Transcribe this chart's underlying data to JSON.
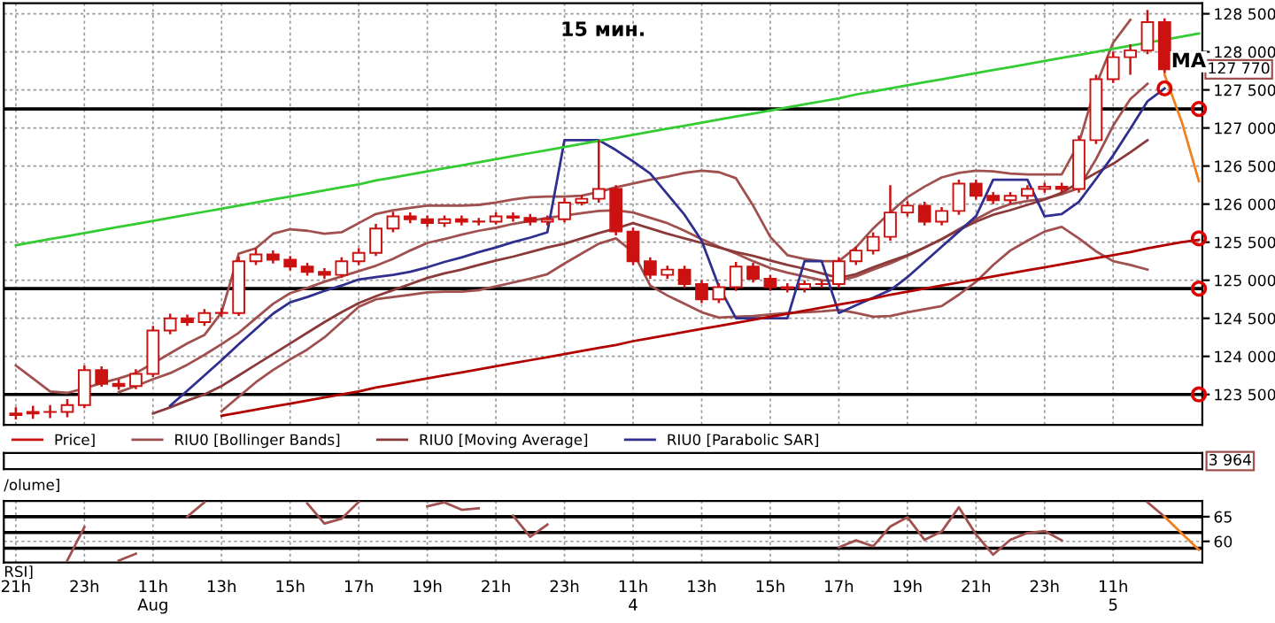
{
  "chart_data": [
    {
      "type": "candlestick",
      "title": "15 мин.",
      "ylim": [
        123100,
        128640
      ],
      "categories": [
        null,
        null,
        null,
        null,
        null,
        null,
        null,
        null,
        null,
        null,
        null,
        null,
        null,
        null,
        null,
        null,
        null,
        null,
        null,
        null,
        null,
        null,
        null,
        null,
        null,
        null,
        null,
        null,
        null,
        null,
        null,
        null,
        null,
        null,
        null,
        null,
        null,
        null,
        null,
        null,
        null,
        null,
        null,
        null,
        null,
        null,
        null,
        null,
        null,
        null,
        null,
        null,
        null,
        null,
        null,
        null,
        null,
        null,
        null,
        null,
        null,
        null,
        null,
        null,
        null,
        null,
        null,
        null,
        null,
        null
      ],
      "yticks": [
        {
          "value": 123500,
          "label": "123 500"
        },
        {
          "value": 124000,
          "label": "124 000"
        },
        {
          "value": 124500,
          "label": "124 500"
        },
        {
          "value": 125000,
          "label": "125 000"
        },
        {
          "value": 125500,
          "label": "125 500"
        },
        {
          "value": 126000,
          "label": "126 000"
        },
        {
          "value": 126500,
          "label": "126 500"
        },
        {
          "value": 127000,
          "label": "127 000"
        },
        {
          "value": 127500,
          "label": "127 500"
        },
        {
          "value": 128000,
          "label": "128 000"
        },
        {
          "value": 128500,
          "label": "128 500"
        }
      ],
      "tick_labels": "y",
      "grid": true,
      "legend": "bottom",
      "ref_lines": [
        {
          "axis": "y",
          "value": 127250,
          "color": "#000000"
        },
        {
          "axis": "y",
          "value": 124890,
          "color": "#000000"
        },
        {
          "axis": "y",
          "value": 123500,
          "color": "#000000"
        }
      ],
      "annotations": [
        "MA",
        "127 770"
      ],
      "series": [
        {
          "type": "candlestick",
          "name": "Price]",
          "color": "#cc1111",
          "ohlc": [
            [
              123230,
              123330,
              123170,
              123250
            ],
            [
              123250,
              123350,
              123180,
              123270
            ],
            [
              123270,
              123360,
              123190,
              123270
            ],
            [
              123270,
              123440,
              123200,
              123360
            ],
            [
              123360,
              123880,
              123320,
              123820
            ],
            [
              123820,
              123870,
              123600,
              123640
            ],
            [
              123640,
              123700,
              123560,
              123610
            ],
            [
              123610,
              123830,
              123570,
              123770
            ],
            [
              123770,
              124400,
              123730,
              124340
            ],
            [
              124340,
              124560,
              124290,
              124500
            ],
            [
              124500,
              124550,
              124400,
              124450
            ],
            [
              124450,
              124620,
              124400,
              124570
            ],
            [
              124570,
              124640,
              124520,
              124570
            ],
            [
              124570,
              125310,
              124530,
              125250
            ],
            [
              125250,
              125420,
              125200,
              125340
            ],
            [
              125340,
              125390,
              125220,
              125270
            ],
            [
              125270,
              125320,
              125130,
              125180
            ],
            [
              125180,
              125230,
              125060,
              125110
            ],
            [
              125110,
              125160,
              125020,
              125070
            ],
            [
              125070,
              125300,
              125030,
              125250
            ],
            [
              125250,
              125420,
              125200,
              125360
            ],
            [
              125360,
              125740,
              125320,
              125680
            ],
            [
              125680,
              125900,
              125630,
              125840
            ],
            [
              125840,
              125890,
              125750,
              125800
            ],
            [
              125800,
              125850,
              125700,
              125750
            ],
            [
              125750,
              125850,
              125700,
              125800
            ],
            [
              125800,
              125850,
              125720,
              125770
            ],
            [
              125770,
              125820,
              125720,
              125770
            ],
            [
              125770,
              125890,
              125730,
              125840
            ],
            [
              125840,
              125890,
              125770,
              125820
            ],
            [
              125820,
              125870,
              125720,
              125770
            ],
            [
              125770,
              125850,
              125720,
              125800
            ],
            [
              125800,
              126080,
              125760,
              126020
            ],
            [
              126020,
              126120,
              125980,
              126070
            ],
            [
              126070,
              126840,
              126020,
              126200
            ],
            [
              126200,
              126250,
              125590,
              125640
            ],
            [
              125640,
              125690,
              125200,
              125250
            ],
            [
              125250,
              125300,
              125020,
              125070
            ],
            [
              125070,
              125190,
              125020,
              125140
            ],
            [
              125140,
              125190,
              124900,
              124950
            ],
            [
              124950,
              125000,
              124700,
              124750
            ],
            [
              124750,
              124960,
              124700,
              124910
            ],
            [
              124910,
              125240,
              124860,
              125180
            ],
            [
              125180,
              125230,
              124970,
              125020
            ],
            [
              125020,
              125070,
              124860,
              124910
            ],
            [
              124910,
              124960,
              124840,
              124890
            ],
            [
              124890,
              125000,
              124840,
              124950
            ],
            [
              124950,
              125000,
              124900,
              124950
            ],
            [
              124950,
              125300,
              124900,
              125250
            ],
            [
              125250,
              125440,
              125200,
              125390
            ],
            [
              125390,
              125630,
              125340,
              125570
            ],
            [
              125570,
              126250,
              125520,
              125890
            ],
            [
              125890,
              126040,
              125840,
              125980
            ],
            [
              125980,
              126030,
              125720,
              125770
            ],
            [
              125770,
              125960,
              125720,
              125910
            ],
            [
              125910,
              126320,
              125860,
              126270
            ],
            [
              126270,
              126320,
              126060,
              126110
            ],
            [
              126110,
              126160,
              126000,
              126050
            ],
            [
              126050,
              126160,
              126000,
              126110
            ],
            [
              126110,
              126250,
              126060,
              126200
            ],
            [
              126200,
              126280,
              126150,
              126230
            ],
            [
              126230,
              126280,
              126150,
              126200
            ],
            [
              126200,
              126900,
              126150,
              126840
            ],
            [
              126840,
              127700,
              126790,
              127640
            ],
            [
              127640,
              128000,
              127590,
              127930
            ],
            [
              127930,
              128100,
              127700,
              128020
            ],
            [
              128020,
              128550,
              127970,
              128390
            ],
            [
              128390,
              128440,
              127720,
              127770
            ],
            null,
            null
          ]
        },
        {
          "type": "line",
          "name": "RIU0 [Bollinger Bands]",
          "color": "#a0504e",
          "values": [
            123880,
            123710,
            123540,
            123520,
            123580,
            123650,
            123710,
            123780,
            123910,
            124040,
            124170,
            124280,
            124580,
            125350,
            125420,
            125610,
            125670,
            125650,
            125610,
            125630,
            125750,
            125870,
            125920,
            125950,
            125980,
            125980,
            125980,
            125990,
            126020,
            126060,
            126090,
            126100,
            126100,
            126110,
            126160,
            126220,
            126270,
            126320,
            126360,
            126410,
            126440,
            126420,
            126340,
            125980,
            125570,
            125330,
            125280,
            125250,
            125250,
            125430,
            125680,
            125890,
            126090,
            126230,
            126350,
            126410,
            126440,
            126430,
            126400,
            126390,
            126390,
            126390,
            126800,
            127560,
            128120,
            128420,
            null,
            null,
            null,
            null
          ]
        },
        {
          "type": "line",
          "color": "#a0504e",
          "values": [
            null,
            null,
            null,
            null,
            null,
            null,
            123530,
            123610,
            123700,
            123780,
            123890,
            124020,
            124160,
            124310,
            124500,
            124690,
            124830,
            124900,
            124980,
            125050,
            125120,
            125190,
            125280,
            125390,
            125490,
            125540,
            125600,
            125650,
            125690,
            125740,
            125780,
            125820,
            125850,
            125880,
            125910,
            125920,
            125890,
            125820,
            125750,
            125650,
            125540,
            125440,
            125350,
            125250,
            125160,
            125100,
            125050,
            125000,
            124990,
            125050,
            125140,
            125220,
            125320,
            125430,
            125540,
            125670,
            125800,
            125920,
            126000,
            126040,
            126070,
            126130,
            126210,
            126590,
            127030,
            127380,
            127580,
            null,
            null,
            null
          ]
        },
        {
          "type": "line",
          "color": "#a0504e",
          "values": [
            null,
            null,
            null,
            null,
            null,
            null,
            null,
            null,
            null,
            null,
            null,
            null,
            123280,
            123470,
            123660,
            123820,
            123960,
            124090,
            124250,
            124450,
            124650,
            124750,
            124780,
            124810,
            124840,
            124850,
            124850,
            124870,
            124920,
            124970,
            125020,
            125080,
            125220,
            125350,
            125480,
            125550,
            125370,
            124930,
            124800,
            124690,
            124580,
            124510,
            124520,
            124530,
            124550,
            124570,
            124580,
            124590,
            124610,
            124570,
            124520,
            124530,
            124580,
            124620,
            124660,
            124810,
            124980,
            125200,
            125390,
            125520,
            125640,
            125700,
            125550,
            125380,
            125250,
            125200,
            125140,
            null,
            null,
            null
          ]
        },
        {
          "type": "line",
          "name": "RIU0 [Moving Average]",
          "color": "#8b3a3a",
          "values": [
            null,
            null,
            null,
            null,
            null,
            null,
            null,
            null,
            123250,
            123330,
            123420,
            123500,
            123610,
            123750,
            123890,
            124030,
            124170,
            124310,
            124450,
            124580,
            124700,
            124790,
            124870,
            124950,
            125030,
            125090,
            125140,
            125200,
            125260,
            125310,
            125370,
            125430,
            125480,
            125550,
            125620,
            125680,
            125750,
            125680,
            125610,
            125550,
            125490,
            125430,
            125370,
            125320,
            125260,
            125200,
            125150,
            125090,
            125030,
            125080,
            125170,
            125250,
            125330,
            125430,
            125540,
            125660,
            125770,
            125860,
            125920,
            125990,
            126060,
            126150,
            126280,
            126410,
            126530,
            126680,
            126840,
            null,
            null,
            null
          ]
        },
        {
          "type": "line",
          "name": "RIU0 [Parabolic SAR]",
          "color": "#2f2f8f",
          "values": [
            null,
            null,
            null,
            null,
            null,
            null,
            null,
            null,
            null,
            123350,
            123550,
            123750,
            123950,
            124160,
            124360,
            124560,
            124710,
            124780,
            124860,
            124930,
            125010,
            125040,
            125070,
            125110,
            125170,
            125240,
            125300,
            125370,
            125430,
            125500,
            125560,
            125630,
            126840,
            126840,
            126840,
            126710,
            126560,
            126400,
            126130,
            125860,
            125520,
            124920,
            124500,
            124500,
            124500,
            124500,
            125250,
            125250,
            124570,
            124670,
            124770,
            124870,
            125040,
            125240,
            125440,
            125640,
            125840,
            126320,
            126320,
            126320,
            125840,
            125870,
            126030,
            126330,
            126640,
            126990,
            127350,
            127520,
            null,
            null
          ]
        },
        {
          "type": "line",
          "color": "#33cc33",
          "values": [
            125460,
            125500,
            125540,
            125580,
            125620,
            125660,
            125700,
            125740,
            125780,
            125820,
            125860,
            125900,
            125940,
            125980,
            126020,
            126060,
            126100,
            126140,
            126180,
            126220,
            126260,
            126310,
            126350,
            126390,
            126430,
            126470,
            126510,
            126550,
            126590,
            126630,
            126670,
            126710,
            126750,
            126790,
            126830,
            126870,
            126910,
            126950,
            126990,
            127030,
            127070,
            127110,
            127150,
            127190,
            127230,
            127270,
            127310,
            127350,
            127390,
            127440,
            127480,
            127520,
            127560,
            127600,
            127640,
            127680,
            127720,
            127760,
            127800,
            127840,
            127880,
            127920,
            127960,
            128000,
            128040,
            128080,
            128120,
            128160,
            128200,
            128240
          ]
        },
        {
          "type": "line",
          "color": "#b00000",
          "values": [
            null,
            null,
            null,
            null,
            null,
            null,
            null,
            null,
            null,
            null,
            null,
            null,
            123220,
            123260,
            123300,
            123340,
            123380,
            123420,
            123460,
            123500,
            123540,
            123590,
            123630,
            123670,
            123710,
            123750,
            123790,
            123830,
            123870,
            123910,
            123950,
            123990,
            124030,
            124070,
            124110,
            124150,
            124200,
            124240,
            124280,
            124320,
            124360,
            124400,
            124440,
            124480,
            124520,
            124560,
            124600,
            124640,
            124680,
            124720,
            124760,
            124810,
            124850,
            124890,
            124930,
            124970,
            125010,
            125050,
            125090,
            125130,
            125170,
            125210,
            125250,
            125290,
            125330,
            125370,
            125420,
            125460,
            125500,
            125530
          ]
        },
        {
          "type": "line",
          "color": "#f08020",
          "values": [
            null,
            null,
            null,
            null,
            null,
            null,
            null,
            null,
            null,
            null,
            null,
            null,
            null,
            null,
            null,
            null,
            null,
            null,
            null,
            null,
            null,
            null,
            null,
            null,
            null,
            null,
            null,
            null,
            null,
            null,
            null,
            null,
            null,
            null,
            null,
            null,
            null,
            null,
            null,
            null,
            null,
            null,
            null,
            null,
            null,
            null,
            null,
            null,
            null,
            null,
            null,
            null,
            null,
            null,
            null,
            null,
            null,
            null,
            null,
            null,
            null,
            null,
            null,
            null,
            null,
            null,
            null,
            127700,
            127080,
            126300
          ]
        },
        {
          "type": "scatter",
          "color": "#dd0000",
          "marker": "circle",
          "values": [
            null,
            null,
            null,
            null,
            null,
            null,
            null,
            null,
            null,
            null,
            null,
            null,
            null,
            null,
            null,
            null,
            null,
            null,
            null,
            null,
            null,
            null,
            null,
            null,
            null,
            null,
            null,
            null,
            null,
            null,
            null,
            null,
            null,
            null,
            null,
            null,
            null,
            null,
            null,
            null,
            null,
            null,
            null,
            null,
            null,
            null,
            null,
            null,
            null,
            null,
            null,
            null,
            null,
            null,
            null,
            null,
            null,
            null,
            null,
            null,
            null,
            null,
            null,
            null,
            null,
            null,
            null,
            127520,
            null,
            127250
          ]
        },
        {
          "type": "scatter",
          "color": "#dd0000",
          "marker": "circle",
          "values": [
            null,
            null,
            null,
            null,
            null,
            null,
            null,
            null,
            null,
            null,
            null,
            null,
            null,
            null,
            null,
            null,
            null,
            null,
            null,
            null,
            null,
            null,
            null,
            null,
            null,
            null,
            null,
            null,
            null,
            null,
            null,
            null,
            null,
            null,
            null,
            null,
            null,
            null,
            null,
            null,
            null,
            null,
            null,
            null,
            null,
            null,
            null,
            null,
            null,
            null,
            null,
            null,
            null,
            null,
            null,
            null,
            null,
            null,
            null,
            null,
            null,
            null,
            null,
            null,
            null,
            null,
            null,
            null,
            null,
            125550
          ]
        },
        {
          "type": "scatter",
          "color": "#dd0000",
          "marker": "circle",
          "values": [
            null,
            null,
            null,
            null,
            null,
            null,
            null,
            null,
            null,
            null,
            null,
            null,
            null,
            null,
            null,
            null,
            null,
            null,
            null,
            null,
            null,
            null,
            null,
            null,
            null,
            null,
            null,
            null,
            null,
            null,
            null,
            null,
            null,
            null,
            null,
            null,
            null,
            null,
            null,
            null,
            null,
            null,
            null,
            null,
            null,
            null,
            null,
            null,
            null,
            null,
            null,
            null,
            null,
            null,
            null,
            null,
            null,
            null,
            null,
            null,
            null,
            null,
            null,
            null,
            null,
            null,
            null,
            null,
            null,
            124890
          ]
        },
        {
          "type": "scatter",
          "color": "#dd0000",
          "marker": "circle",
          "values": [
            null,
            null,
            null,
            null,
            null,
            null,
            null,
            null,
            null,
            null,
            null,
            null,
            null,
            null,
            null,
            null,
            null,
            null,
            null,
            null,
            null,
            null,
            null,
            null,
            null,
            null,
            null,
            null,
            null,
            null,
            null,
            null,
            null,
            null,
            null,
            null,
            null,
            null,
            null,
            null,
            null,
            null,
            null,
            null,
            null,
            null,
            null,
            null,
            null,
            null,
            null,
            null,
            null,
            null,
            null,
            null,
            null,
            null,
            null,
            null,
            null,
            null,
            null,
            null,
            null,
            null,
            null,
            null,
            null,
            123500
          ]
        }
      ]
    },
    {
      "type": "other",
      "annotations": [
        "/olume]",
        "3 964"
      ]
    },
    {
      "type": "line",
      "ylim": [
        55.7,
        68.2
      ],
      "yticks": [
        65,
        60
      ],
      "grid": true,
      "categories": [
        "21h",
        null,
        null,
        null,
        "23h",
        null,
        null,
        null,
        "11h\nAug",
        null,
        null,
        null,
        "13h",
        null,
        null,
        null,
        "15h",
        null,
        null,
        null,
        "17h",
        null,
        null,
        null,
        "19h",
        null,
        null,
        null,
        "21h",
        null,
        null,
        null,
        "23h",
        null,
        null,
        null,
        "11h\n4",
        null,
        null,
        null,
        "13h",
        null,
        null,
        null,
        "15h",
        null,
        null,
        null,
        "17h",
        null,
        null,
        null,
        "19h",
        null,
        null,
        null,
        "21h",
        null,
        null,
        null,
        "23h",
        null,
        null,
        null,
        "11h\n5",
        null,
        null,
        null,
        null,
        null
      ],
      "ref_lines": [
        {
          "axis": "y",
          "value": 65,
          "color": "#000000"
        },
        {
          "axis": "y",
          "value": 61.8,
          "color": "#000000"
        },
        {
          "axis": "y",
          "value": 58.6,
          "color": "#000000"
        }
      ],
      "annotations": [
        "RSI]"
      ],
      "series": [
        {
          "type": "line",
          "color": "#a0504e",
          "values": [
            null,
            null,
            null,
            56.1,
            62.9,
            null,
            56.1,
            57.5,
            null,
            null,
            65,
            67.9,
            null,
            null,
            null,
            null,
            null,
            67.7,
            63.6,
            64.6,
            68,
            null,
            null,
            null,
            67.1,
            67.9,
            66.4,
            66.7,
            null,
            65.2,
            60.9,
            63.4,
            null,
            null,
            null,
            null,
            null,
            null,
            null,
            null,
            null,
            null,
            null,
            null,
            null,
            null,
            null,
            null,
            58.8,
            60.2,
            59.0,
            63.0,
            64.9,
            60.3,
            62.0,
            66.9,
            61.4,
            57.3,
            60.3,
            61.7,
            62.1,
            60.2,
            null,
            null,
            null,
            null,
            67.9,
            65,
            null,
            null
          ]
        },
        {
          "type": "line",
          "color": "#f08020",
          "values": [
            null,
            null,
            null,
            null,
            null,
            null,
            null,
            null,
            null,
            null,
            null,
            null,
            null,
            null,
            null,
            null,
            null,
            null,
            null,
            null,
            null,
            null,
            null,
            null,
            null,
            null,
            null,
            null,
            null,
            null,
            null,
            null,
            null,
            null,
            null,
            null,
            null,
            null,
            null,
            null,
            null,
            null,
            null,
            null,
            null,
            null,
            null,
            null,
            null,
            null,
            null,
            null,
            null,
            null,
            null,
            null,
            null,
            null,
            null,
            null,
            null,
            null,
            null,
            null,
            null,
            null,
            null,
            65,
            61.6,
            58.3
          ]
        }
      ]
    }
  ]
}
